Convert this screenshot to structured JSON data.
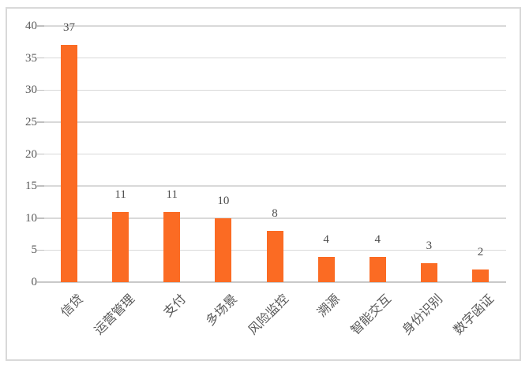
{
  "chart_data": {
    "type": "bar",
    "categories": [
      "信贷",
      "运营管理",
      "支付",
      "多场景",
      "风险监控",
      "溯源",
      "智能交互",
      "身份识别",
      "数字函证"
    ],
    "values": [
      37,
      11,
      11,
      10,
      8,
      4,
      4,
      3,
      2
    ],
    "title": "",
    "xlabel": "",
    "ylabel": "",
    "ylim": [
      0,
      40
    ],
    "y_ticks": [
      0,
      5,
      10,
      15,
      20,
      25,
      30,
      35,
      40
    ],
    "grid": true,
    "legend_position": "none",
    "data_labels": true,
    "bar_color": "#FB6B23"
  },
  "colors": {
    "background": "#FFFFFF",
    "frame_border": "#D9D9D9",
    "gridline": "#D9D9D9",
    "axis_line": "#C9C9C9",
    "tick_mark": "#BFBFBF",
    "axis_text": "#595959",
    "value_text": "#4D4D4D"
  }
}
